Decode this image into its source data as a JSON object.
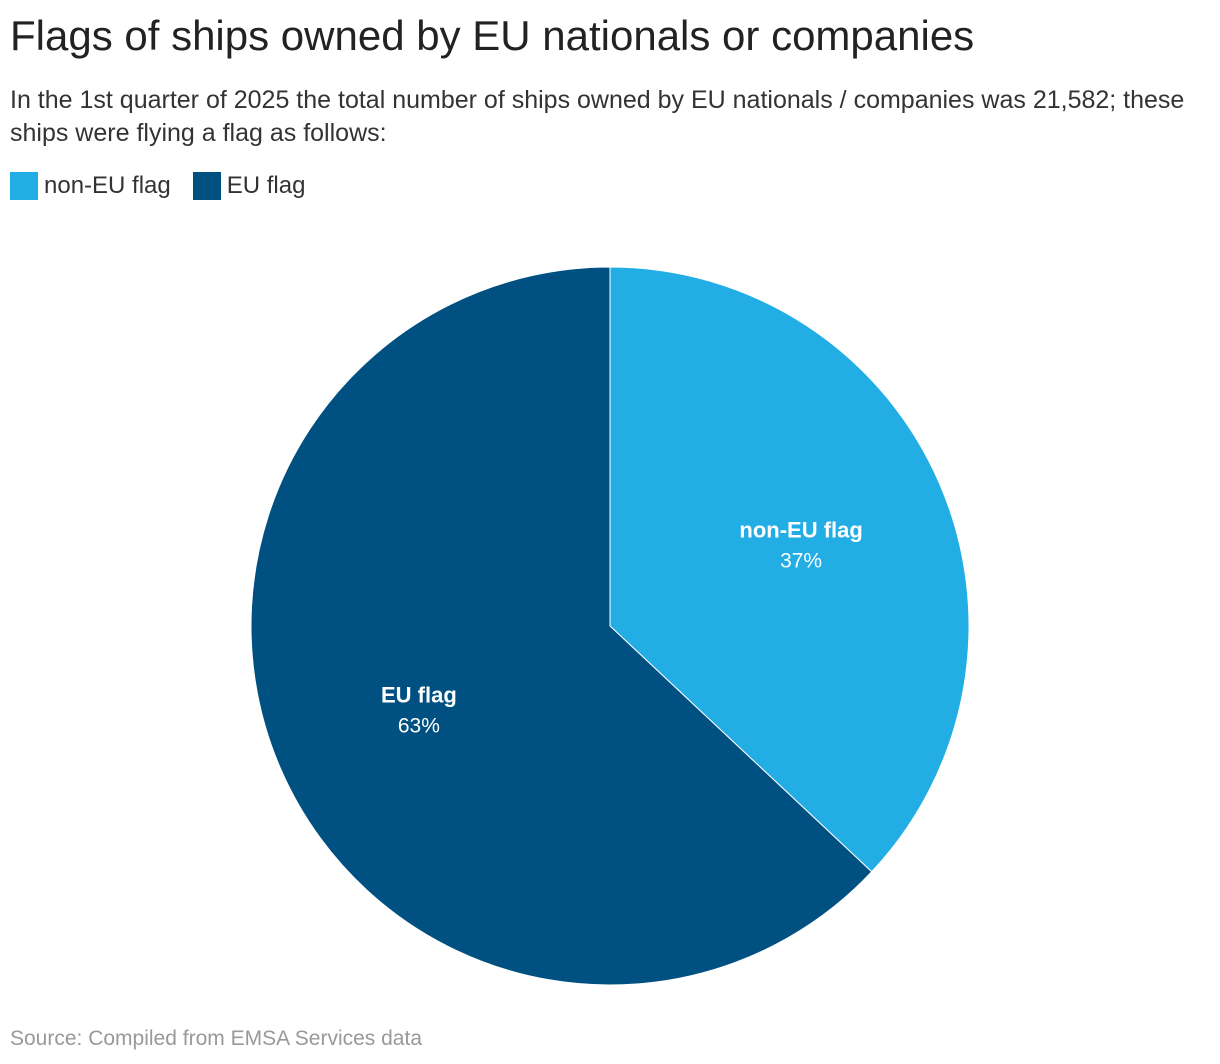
{
  "title": "Flags of ships owned by EU nationals or companies",
  "subtitle": "In the 1st quarter of 2025 the total number of ships owned by EU nationals / companies was 21,582; these ships were flying a flag as follows:",
  "source": "Source: Compiled from EMSA Services data",
  "legend": [
    {
      "label": "non-EU flag",
      "color": "#22aee5"
    },
    {
      "label": "EU flag",
      "color": "#005182"
    }
  ],
  "chart_data": {
    "type": "pie",
    "title": "Flags of ships owned by EU nationals or companies",
    "total_ships": 21582,
    "slices": [
      {
        "label": "non-EU flag",
        "value": 37,
        "value_label": "37%",
        "color": "#22aee5"
      },
      {
        "label": "EU flag",
        "value": 63,
        "value_label": "63%",
        "color": "#005182"
      }
    ],
    "start": "12 o'clock",
    "direction": "clockwise",
    "legend_position": "top-left"
  }
}
